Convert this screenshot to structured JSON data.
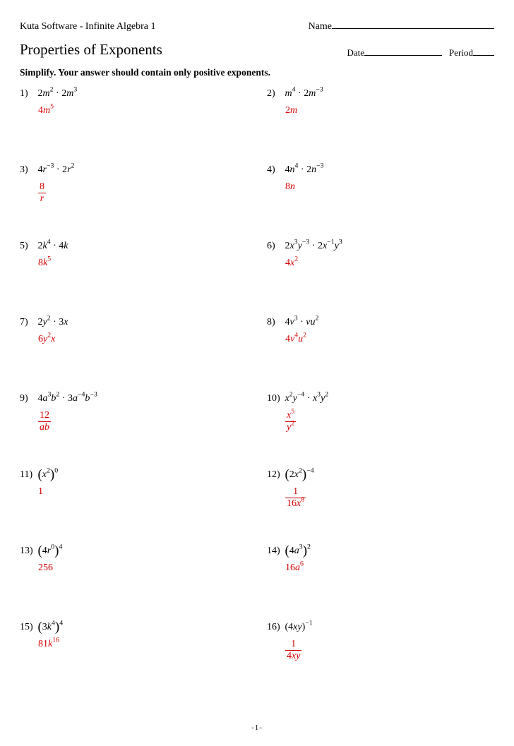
{
  "header": {
    "software": "Kuta Software - Infinite Algebra 1",
    "name_label": "Name",
    "title": "Properties of Exponents",
    "date_label": "Date",
    "period_label": "Period",
    "instructions": "Simplify.  Your answer should contain only positive exponents."
  },
  "colors": {
    "answer": "#d40000",
    "text": "#000000",
    "background": "#ffffff"
  },
  "problems": [
    {
      "n": "1)",
      "q": "2<span class='math'>m</span><sup>2</sup> · 2<span class='math'>m</span><sup>3</sup>",
      "a": "4<span class='math'>m</span><sup>5</sup>"
    },
    {
      "n": "2)",
      "q": "<span class='math'>m</span><sup>4</sup> · 2<span class='math'>m</span><sup>−3</sup>",
      "a": "2<span class='math'>m</span>"
    },
    {
      "n": "3)",
      "q": "4<span class='math'>r</span><sup>−3</sup> · 2<span class='math'>r</span><sup>2</sup>",
      "a": "<span class='frac'><span>8</span><span class='den'><span class='math'>r</span></span></span>"
    },
    {
      "n": "4)",
      "q": "4<span class='math'>n</span><sup>4</sup> · 2<span class='math'>n</span><sup>−3</sup>",
      "a": "8<span class='math'>n</span>"
    },
    {
      "n": "5)",
      "q": "2<span class='math'>k</span><sup>4</sup> · 4<span class='math'>k</span>",
      "a": "8<span class='math'>k</span><sup>5</sup>"
    },
    {
      "n": "6)",
      "q": "2<span class='math'>x</span><sup>3</sup><span class='math'>y</span><sup>−3</sup> · 2<span class='math'>x</span><sup>−1</sup><span class='math'>y</span><sup>3</sup>",
      "a": "4<span class='math'>x</span><sup>2</sup>"
    },
    {
      "n": "7)",
      "q": "2<span class='math'>y</span><sup>2</sup> · 3<span class='math'>x</span>",
      "a": "6<span class='math'>y</span><sup>2</sup><span class='math'>x</span>"
    },
    {
      "n": "8)",
      "q": "4<span class='math'>v</span><sup>3</sup> · <span class='math'>vu</span><sup>2</sup>",
      "a": "4<span class='math'>v</span><sup>4</sup><span class='math'>u</span><sup>2</sup>"
    },
    {
      "n": "9)",
      "q": "4<span class='math'>a</span><sup>3</sup><span class='math'>b</span><sup>2</sup> · 3<span class='math'>a</span><sup>−4</sup><span class='math'>b</span><sup>−3</sup>",
      "a": "<span class='frac'><span>12</span><span class='den'><span class='math'>ab</span></span></span>"
    },
    {
      "n": "10)",
      "q": "<span class='math'>x</span><sup>2</sup><span class='math'>y</span><sup>−4</sup> · <span class='math'>x</span><sup>3</sup><span class='math'>y</span><sup>2</sup>",
      "a": "<span class='frac'><span><span class='math'>x</span><sup>5</sup></span><span class='den'><span class='math'>y</span><sup>2</sup></span></span>"
    },
    {
      "n": "11)",
      "q": "<span class='paren'>(</span><span class='math'>x</span><sup>2</sup><span class='paren'>)</span><sup>0</sup>",
      "a": "1"
    },
    {
      "n": "12)",
      "q": "<span class='paren'>(</span>2<span class='math'>x</span><sup>2</sup><span class='paren'>)</span><sup>−4</sup>",
      "a": "<span class='frac'><span>1</span><span class='den'>16<span class='math'>x</span><sup>8</sup></span></span>"
    },
    {
      "n": "13)",
      "q": "<span class='paren'>(</span>4<span class='math'>r</span><sup>0</sup><span class='paren'>)</span><sup>4</sup>",
      "a": "256"
    },
    {
      "n": "14)",
      "q": "<span class='paren'>(</span>4<span class='math'>a</span><sup>3</sup><span class='paren'>)</span><sup>2</sup>",
      "a": "16<span class='math'>a</span><sup>6</sup>"
    },
    {
      "n": "15)",
      "q": "<span class='paren'>(</span>3<span class='math'>k</span><sup>4</sup><span class='paren'>)</span><sup>4</sup>",
      "a": "81<span class='math'>k</span><sup>16</sup>"
    },
    {
      "n": "16)",
      "q": "(4<span class='math'>xy</span>)<sup>−1</sup>",
      "a": "<span class='frac'><span>1</span><span class='den'>4<span class='math'>xy</span></span></span>"
    }
  ],
  "footer": "-1-"
}
